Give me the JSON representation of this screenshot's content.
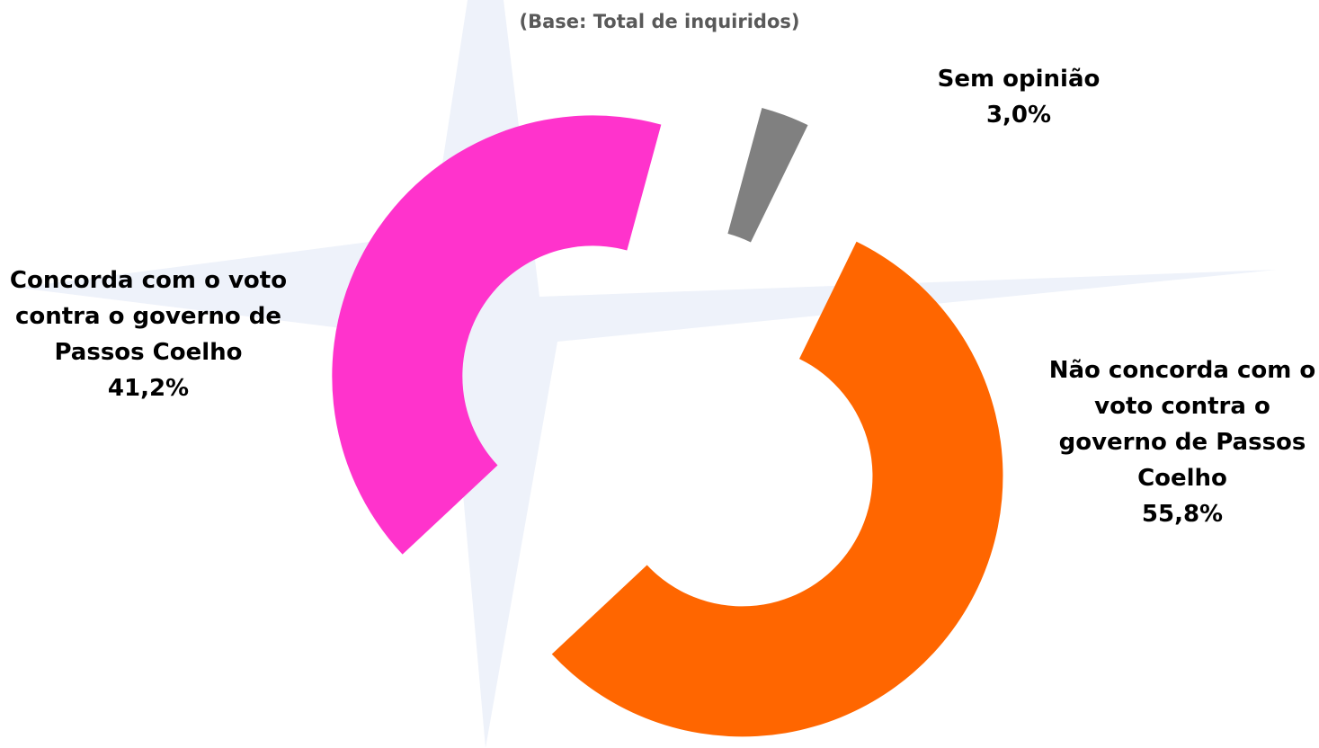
{
  "chart_data": {
    "type": "donut",
    "subtitle": "(Base: Total de inquiridos)",
    "categories": [
      "Não concorda com o voto contra o governo de Passos Coelho",
      "Concorda com o voto contra o governo de Passos Coelho",
      "Sem opinião"
    ],
    "values": [
      55.8,
      41.2,
      3.0
    ],
    "value_labels": [
      "55,8%",
      "41,2%",
      "3,0%"
    ],
    "colors": [
      "#ff6600",
      "#ff33cc",
      "#808080"
    ]
  }
}
